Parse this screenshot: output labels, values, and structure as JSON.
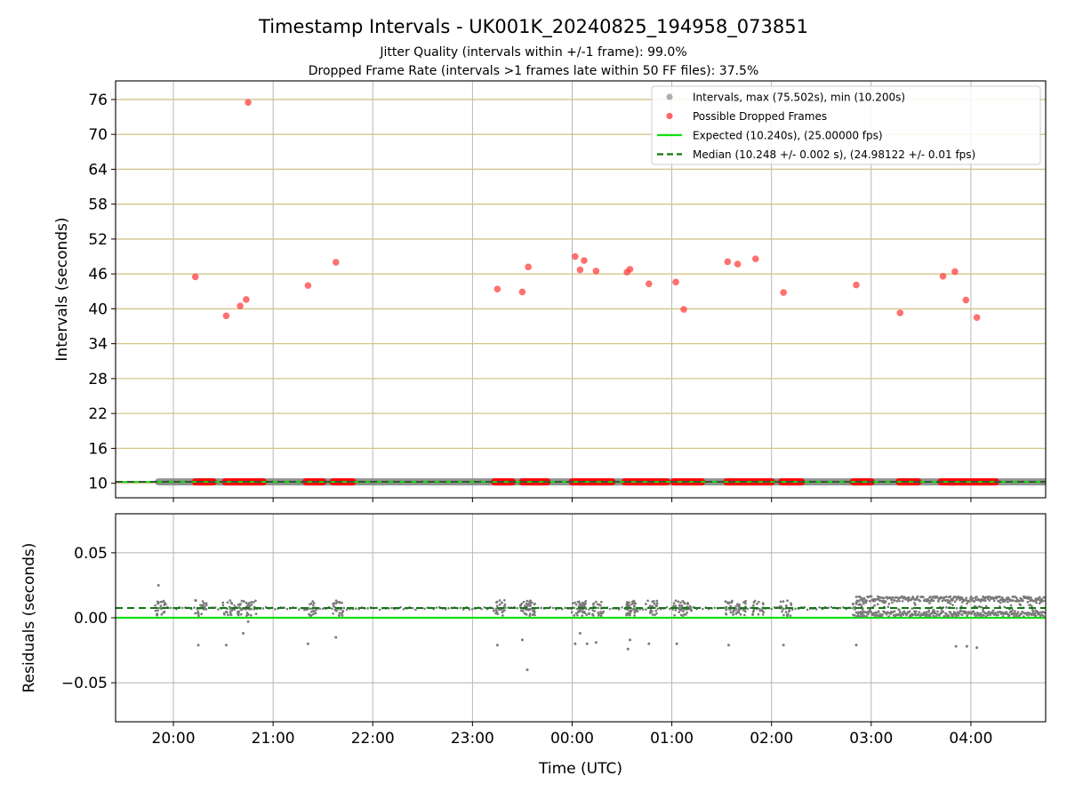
{
  "figure": {
    "title": "Timestamp Intervals - UK001K_20240825_194958_073851",
    "subtitle_line1": "Jitter Quality (intervals within +/-1 frame): 99.0%",
    "subtitle_line2": "Dropped Frame Rate (intervals >1 frames late within 50 FF files): 37.5%"
  },
  "chart_data": [
    {
      "type": "scatter",
      "panel": "top",
      "ylabel": "Intervals (seconds)",
      "xlabel": "",
      "xlim_hours": [
        19.42,
        28.75
      ],
      "ylim": [
        7.5,
        79.2
      ],
      "x_ticks": [
        20,
        21,
        22,
        23,
        24,
        25,
        26,
        27,
        28
      ],
      "y_ticks": [
        10,
        16,
        22,
        28,
        34,
        40,
        46,
        52,
        58,
        64,
        70,
        76
      ],
      "y_tick_labels": [
        "10",
        "16",
        "22",
        "28",
        "34",
        "40",
        "46",
        "52",
        "58",
        "64",
        "70",
        "76"
      ],
      "grid": {
        "x": true,
        "y": true,
        "y_color": "#d4c48a"
      },
      "legend": {
        "placement": "upper-right",
        "entries": [
          {
            "label": "Intervals, max (75.502s), min (10.200s)",
            "kind": "marker",
            "color": "#9e9e9e"
          },
          {
            "label": "Possible Dropped Frames",
            "kind": "marker",
            "color": "#ff4040"
          },
          {
            "label": "Expected (10.240s), (25.00000 fps)",
            "kind": "line",
            "color": "#10e010"
          },
          {
            "label": "Median (10.248 +/- 0.002 s), (24.98122 +/- 0.01 fps)",
            "kind": "dashed",
            "color": "#117711"
          }
        ]
      },
      "expected_value": 10.24,
      "median_value": 10.248,
      "interval_band": {
        "x_start": 19.85,
        "x_end": 28.75,
        "value": 10.24,
        "color": "#808080"
      },
      "dropped_band_segments": [
        [
          20.22,
          20.4
        ],
        [
          20.52,
          20.9
        ],
        [
          21.33,
          21.5
        ],
        [
          21.6,
          21.8
        ],
        [
          23.22,
          23.4
        ],
        [
          23.5,
          23.75
        ],
        [
          24.0,
          24.4
        ],
        [
          24.53,
          24.75
        ],
        [
          24.76,
          24.95
        ],
        [
          25.02,
          25.3
        ],
        [
          25.55,
          26.0
        ],
        [
          26.1,
          26.3
        ],
        [
          26.82,
          27.0
        ],
        [
          27.28,
          27.47
        ],
        [
          27.7,
          28.25
        ]
      ],
      "dropped_points": {
        "x": [
          20.22,
          20.53,
          20.67,
          20.73,
          20.75,
          21.35,
          21.63,
          23.25,
          23.5,
          23.56,
          24.03,
          24.08,
          24.12,
          24.24,
          24.55,
          24.58,
          24.77,
          25.04,
          25.12,
          25.56,
          25.66,
          25.84,
          26.12,
          26.85,
          27.29,
          27.72,
          27.84,
          27.95,
          28.06
        ],
        "y": [
          45.5,
          38.8,
          40.5,
          41.6,
          75.5,
          44.0,
          48.0,
          43.4,
          42.9,
          47.2,
          49.0,
          46.7,
          48.3,
          46.5,
          46.3,
          46.8,
          44.3,
          44.6,
          39.9,
          48.1,
          47.7,
          48.6,
          42.8,
          44.1,
          39.3,
          45.6,
          46.4,
          41.5,
          38.5
        ],
        "color": "#ff4040"
      }
    },
    {
      "type": "scatter",
      "panel": "bottom",
      "ylabel": "Residuals (seconds)",
      "xlabel": "Time (UTC)",
      "xlim_hours": [
        19.42,
        28.75
      ],
      "ylim": [
        -0.08,
        0.08
      ],
      "x_ticks": [
        20,
        21,
        22,
        23,
        24,
        25,
        26,
        27,
        28
      ],
      "x_tick_labels": [
        "20:00",
        "21:00",
        "22:00",
        "23:00",
        "00:00",
        "01:00",
        "02:00",
        "03:00",
        "04:00"
      ],
      "y_ticks": [
        0.05,
        0.0,
        -0.05
      ],
      "y_tick_labels": [
        "0.05",
        "0.00",
        "−0.05"
      ],
      "grid": {
        "x": true,
        "y": true
      },
      "expected_residual": 0.0,
      "median_residual": 0.0075,
      "outlier_points": {
        "x": [
          19.85,
          20.25,
          20.53,
          20.7,
          20.75,
          21.35,
          21.63,
          23.25,
          23.5,
          23.55,
          24.03,
          24.08,
          24.24,
          24.56,
          24.58,
          24.77,
          25.05,
          25.57,
          26.12,
          26.85,
          27.85,
          27.96,
          28.06,
          24.15
        ],
        "y": [
          0.025,
          -0.021,
          -0.021,
          -0.012,
          -0.003,
          -0.02,
          -0.015,
          -0.021,
          -0.017,
          -0.04,
          -0.02,
          -0.012,
          -0.019,
          -0.024,
          -0.017,
          -0.02,
          -0.02,
          -0.021,
          -0.021,
          -0.021,
          -0.022,
          -0.022,
          -0.023,
          -0.02
        ]
      }
    }
  ]
}
